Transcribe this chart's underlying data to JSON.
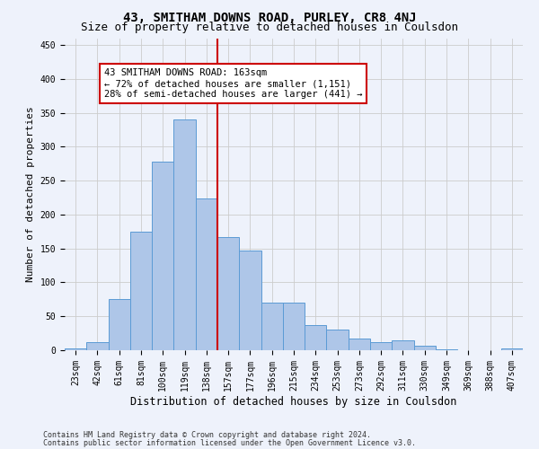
{
  "title": "43, SMITHAM DOWNS ROAD, PURLEY, CR8 4NJ",
  "subtitle": "Size of property relative to detached houses in Coulsdon",
  "xlabel": "Distribution of detached houses by size in Coulsdon",
  "ylabel": "Number of detached properties",
  "bin_labels": [
    "23sqm",
    "42sqm",
    "61sqm",
    "81sqm",
    "100sqm",
    "119sqm",
    "138sqm",
    "157sqm",
    "177sqm",
    "196sqm",
    "215sqm",
    "234sqm",
    "253sqm",
    "273sqm",
    "292sqm",
    "311sqm",
    "330sqm",
    "349sqm",
    "369sqm",
    "388sqm",
    "407sqm"
  ],
  "bar_heights": [
    3,
    12,
    75,
    175,
    278,
    340,
    224,
    167,
    147,
    70,
    70,
    37,
    30,
    17,
    12,
    14,
    7,
    1,
    0,
    0,
    2
  ],
  "bar_color": "#aec6e8",
  "bar_edge_color": "#5b9bd5",
  "vline_bin_index": 7,
  "annotation_line1": "43 SMITHAM DOWNS ROAD: 163sqm",
  "annotation_line2": "← 72% of detached houses are smaller (1,151)",
  "annotation_line3": "28% of semi-detached houses are larger (441) →",
  "annotation_box_color": "#ffffff",
  "annotation_box_edge": "#cc0000",
  "vline_color": "#cc0000",
  "ylim": [
    0,
    460
  ],
  "footer1": "Contains HM Land Registry data © Crown copyright and database right 2024.",
  "footer2": "Contains public sector information licensed under the Open Government Licence v3.0.",
  "bg_color": "#eef2fb",
  "plot_bg_color": "#eef2fb",
  "grid_color": "#cccccc",
  "title_fontsize": 10,
  "subtitle_fontsize": 9,
  "tick_fontsize": 7,
  "ylabel_fontsize": 8,
  "xlabel_fontsize": 8.5,
  "footer_fontsize": 6,
  "annotation_fontsize": 7.5
}
